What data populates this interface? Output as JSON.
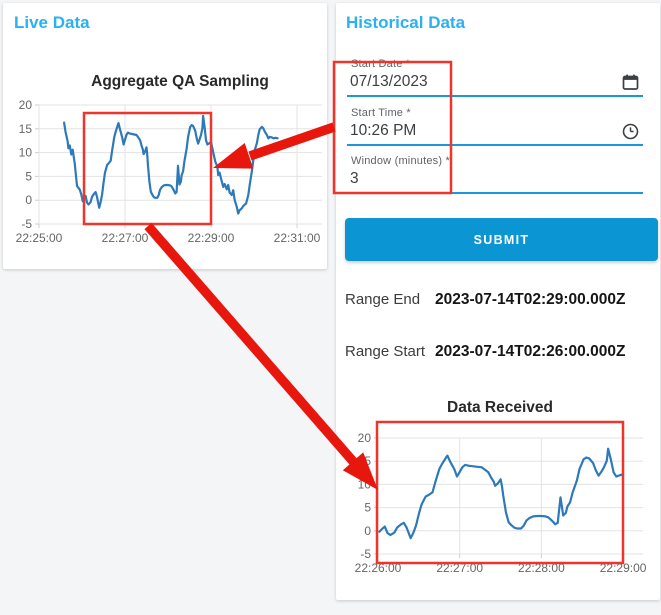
{
  "live_panel": {
    "heading": "Live Data"
  },
  "historical_panel": {
    "heading": "Historical Data",
    "form": {
      "start_date": {
        "label": "Start Date *",
        "value": "07/13/2023"
      },
      "start_time": {
        "label": "Start Time *",
        "value": "10:26 PM"
      },
      "window_minutes": {
        "label": "Window (minutes) *",
        "value": "3"
      },
      "submit_label": "SUBMIT"
    },
    "results": {
      "range_end": {
        "label": "Range End",
        "value": "2023-07-14T02:29:00.000Z"
      },
      "range_start": {
        "label": "Range Start",
        "value": "2023-07-14T02:26:00.000Z"
      }
    }
  },
  "colors": {
    "accent_blue": "#29b1f2",
    "underline_blue": "#1b98dc",
    "button_blue": "#0b95d2",
    "line_blue": "#2e79b9",
    "annotation_red": "#e8170e"
  },
  "chart_data": [
    {
      "type": "line",
      "title": "Aggregate QA Sampling",
      "x_tick_labels": [
        "22:25:00",
        "22:27:00",
        "22:29:00",
        "22:31:00"
      ],
      "x_tick_seconds": [
        0,
        120,
        240,
        360
      ],
      "x_axis": "seconds since 22:25:00",
      "y_ticks": [
        20,
        15,
        10,
        5,
        0,
        -5
      ],
      "ylim": [
        -5,
        20
      ],
      "grid": true,
      "series": [
        {
          "name": "Aggregate QA Sampling",
          "points": [
            [
              35,
              16.3
            ],
            [
              37,
              14.4
            ],
            [
              40,
              12.3
            ],
            [
              41,
              10.9
            ],
            [
              43,
              11.5
            ],
            [
              45,
              9.6
            ],
            [
              47,
              10.6
            ],
            [
              50,
              7.6
            ],
            [
              53,
              3.0
            ],
            [
              55,
              2.6
            ],
            [
              57,
              2.2
            ],
            [
              59,
              1.2
            ],
            [
              61,
              -0.2
            ],
            [
              63,
              0.4
            ],
            [
              65,
              0.9
            ],
            [
              67,
              -0.5
            ],
            [
              69,
              -0.9
            ],
            [
              72,
              -0.4
            ],
            [
              74,
              0.7
            ],
            [
              77,
              1.4
            ],
            [
              79,
              1.7
            ],
            [
              81,
              0.7
            ],
            [
              84,
              -1.6
            ],
            [
              86,
              -0.4
            ],
            [
              88,
              1.2
            ],
            [
              90,
              3.6
            ],
            [
              92,
              5.7
            ],
            [
              95,
              7.4
            ],
            [
              97,
              7.7
            ],
            [
              100,
              8.3
            ],
            [
              102,
              10.4
            ],
            [
              105,
              13.3
            ],
            [
              107,
              14.4
            ],
            [
              110,
              15.8
            ],
            [
              111,
              16.2
            ],
            [
              113,
              14.9
            ],
            [
              116,
              13.3
            ],
            [
              118,
              11.7
            ],
            [
              120,
              12.7
            ],
            [
              122,
              13.7
            ],
            [
              124,
              14.2
            ],
            [
              127,
              14.0
            ],
            [
              130,
              13.9
            ],
            [
              133,
              13.8
            ],
            [
              136,
              13.7
            ],
            [
              138,
              13.3
            ],
            [
              141,
              12.6
            ],
            [
              143,
              11.5
            ],
            [
              145,
              10.6
            ],
            [
              146,
              9.7
            ],
            [
              148,
              10.2
            ],
            [
              150,
              11.1
            ],
            [
              151,
              9.7
            ],
            [
              152,
              7.5
            ],
            [
              154,
              3.9
            ],
            [
              156,
              1.8
            ],
            [
              158,
              1.2
            ],
            [
              160,
              0.7
            ],
            [
              162,
              0.5
            ],
            [
              165,
              0.5
            ],
            [
              167,
              1.1
            ],
            [
              169,
              2.2
            ],
            [
              171,
              2.7
            ],
            [
              174,
              3.1
            ],
            [
              177,
              3.2
            ],
            [
              180,
              3.2
            ],
            [
              183,
              3.1
            ],
            [
              185,
              2.9
            ],
            [
              187,
              2.4
            ],
            [
              189,
              1.8
            ],
            [
              190,
              1.4
            ],
            [
              192,
              1.7
            ],
            [
              194,
              7.2
            ],
            [
              196,
              3.3
            ],
            [
              198,
              3.9
            ],
            [
              199,
              5.2
            ],
            [
              201,
              6.1
            ],
            [
              203,
              8.3
            ],
            [
              206,
              10.8
            ],
            [
              208,
              13.3
            ],
            [
              211,
              15.4
            ],
            [
              213,
              15.8
            ],
            [
              215,
              15.6
            ],
            [
              218,
              14.6
            ],
            [
              220,
              13.0
            ],
            [
              222,
              11.9
            ],
            [
              224,
              12.7
            ],
            [
              226,
              13.7
            ],
            [
              228,
              15.1
            ],
            [
              229,
              17.7
            ],
            [
              231,
              15.4
            ],
            [
              233,
              12.6
            ],
            [
              235,
              11.7
            ],
            [
              238,
              12.0
            ],
            [
              240,
              12.2
            ],
            [
              243,
              10.1
            ],
            [
              246,
              8.1
            ],
            [
              249,
              7.0
            ],
            [
              250,
              5.3
            ],
            [
              252,
              5.8
            ],
            [
              255,
              3.9
            ],
            [
              257,
              2.8
            ],
            [
              259,
              3.4
            ],
            [
              262,
              2.3
            ],
            [
              264,
              3.2
            ],
            [
              266,
              1.6
            ],
            [
              269,
              1.1
            ],
            [
              271,
              2.1
            ],
            [
              273,
              0.0
            ],
            [
              276,
              -1.4
            ],
            [
              278,
              -2.8
            ],
            [
              280,
              -2.1
            ],
            [
              283,
              -1.7
            ],
            [
              285,
              -1.2
            ],
            [
              289,
              -0.7
            ],
            [
              292,
              1.1
            ],
            [
              294,
              3.2
            ],
            [
              297,
              6.0
            ],
            [
              299,
              8.4
            ],
            [
              301,
              10.5
            ],
            [
              304,
              12.0
            ],
            [
              306,
              13.7
            ],
            [
              308,
              14.9
            ],
            [
              311,
              15.4
            ],
            [
              313,
              15.1
            ],
            [
              315,
              14.4
            ],
            [
              318,
              13.7
            ],
            [
              320,
              13.0
            ],
            [
              322,
              13.3
            ],
            [
              325,
              13.2
            ],
            [
              327,
              13.0
            ],
            [
              330,
              13.1
            ],
            [
              333,
              13.0
            ]
          ]
        }
      ]
    },
    {
      "type": "line",
      "title": "Data Received",
      "x_tick_labels": [
        "22:26:00",
        "22:27:00",
        "22:28:00",
        "22:29:00"
      ],
      "x_tick_seconds": [
        60,
        120,
        180,
        240
      ],
      "x_axis": "seconds since 22:25:00",
      "y_ticks": [
        20,
        15,
        10,
        5,
        0,
        -5
      ],
      "ylim": [
        -5,
        20
      ],
      "grid": true,
      "window_seconds": [
        60,
        240
      ],
      "series": [
        {
          "name": "Data Received",
          "points": [
            [
              61,
              -0.2
            ],
            [
              63,
              0.4
            ],
            [
              65,
              0.9
            ],
            [
              67,
              -0.5
            ],
            [
              69,
              -0.9
            ],
            [
              72,
              -0.4
            ],
            [
              74,
              0.7
            ],
            [
              77,
              1.4
            ],
            [
              79,
              1.7
            ],
            [
              81,
              0.7
            ],
            [
              84,
              -1.6
            ],
            [
              86,
              -0.4
            ],
            [
              88,
              1.2
            ],
            [
              90,
              3.6
            ],
            [
              92,
              5.7
            ],
            [
              95,
              7.4
            ],
            [
              97,
              7.7
            ],
            [
              100,
              8.3
            ],
            [
              102,
              10.4
            ],
            [
              105,
              13.3
            ],
            [
              107,
              14.4
            ],
            [
              110,
              15.8
            ],
            [
              111,
              16.2
            ],
            [
              113,
              14.9
            ],
            [
              116,
              13.3
            ],
            [
              118,
              11.7
            ],
            [
              120,
              12.7
            ],
            [
              122,
              13.7
            ],
            [
              124,
              14.2
            ],
            [
              127,
              14.0
            ],
            [
              130,
              13.9
            ],
            [
              133,
              13.8
            ],
            [
              136,
              13.7
            ],
            [
              138,
              13.3
            ],
            [
              141,
              12.6
            ],
            [
              143,
              11.5
            ],
            [
              145,
              10.6
            ],
            [
              146,
              9.7
            ],
            [
              148,
              10.2
            ],
            [
              150,
              11.1
            ],
            [
              151,
              9.7
            ],
            [
              152,
              7.5
            ],
            [
              154,
              3.9
            ],
            [
              156,
              1.8
            ],
            [
              158,
              1.2
            ],
            [
              160,
              0.7
            ],
            [
              162,
              0.5
            ],
            [
              165,
              0.5
            ],
            [
              167,
              1.1
            ],
            [
              169,
              2.2
            ],
            [
              171,
              2.7
            ],
            [
              174,
              3.1
            ],
            [
              177,
              3.2
            ],
            [
              180,
              3.2
            ],
            [
              183,
              3.1
            ],
            [
              185,
              2.9
            ],
            [
              187,
              2.4
            ],
            [
              189,
              1.8
            ],
            [
              190,
              1.4
            ],
            [
              192,
              1.7
            ],
            [
              194,
              7.2
            ],
            [
              196,
              3.3
            ],
            [
              198,
              3.9
            ],
            [
              199,
              5.2
            ],
            [
              201,
              6.1
            ],
            [
              203,
              8.3
            ],
            [
              206,
              10.8
            ],
            [
              208,
              13.3
            ],
            [
              211,
              15.4
            ],
            [
              213,
              15.8
            ],
            [
              215,
              15.6
            ],
            [
              218,
              14.6
            ],
            [
              220,
              13.0
            ],
            [
              222,
              11.9
            ],
            [
              224,
              12.7
            ],
            [
              226,
              13.7
            ],
            [
              228,
              15.1
            ],
            [
              229,
              17.7
            ],
            [
              231,
              15.4
            ],
            [
              233,
              12.6
            ],
            [
              235,
              11.7
            ],
            [
              238,
              12.0
            ],
            [
              240,
              12.2
            ]
          ]
        }
      ]
    }
  ]
}
